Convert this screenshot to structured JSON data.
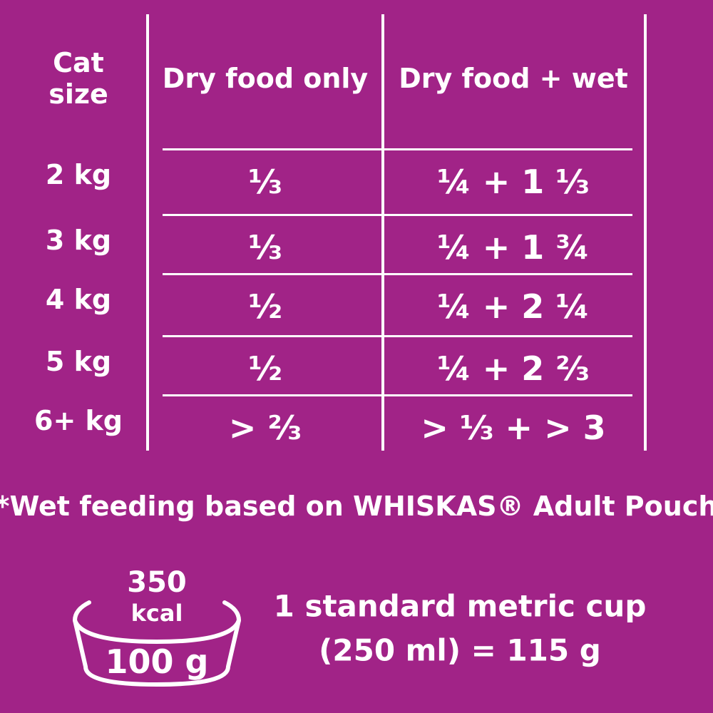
{
  "table": {
    "header": [
      "Cat size",
      "Dry food only",
      "Dry food + wet"
    ],
    "rows": [
      [
        "2 kg",
        "⅓",
        "¼ + 1 ⅓"
      ],
      [
        "3 kg",
        "⅓",
        "¼ + 1 ¾"
      ],
      [
        "4 kg",
        "½",
        "¼ + 2 ¼"
      ],
      [
        "5 kg",
        "½",
        "¼ + 2 ⅔"
      ],
      [
        "6+ kg",
        "> ⅔",
        "> ⅓ + > 3"
      ]
    ]
  },
  "footnote": "*Wet feeding based on WHISKAS® Adult Pouch",
  "bowl": {
    "energy": "350",
    "energy_unit": "kcal",
    "weight": "100 g"
  },
  "cup": {
    "line1": "1 standard metric cup",
    "line2": "(250 ml) = 115 g"
  }
}
